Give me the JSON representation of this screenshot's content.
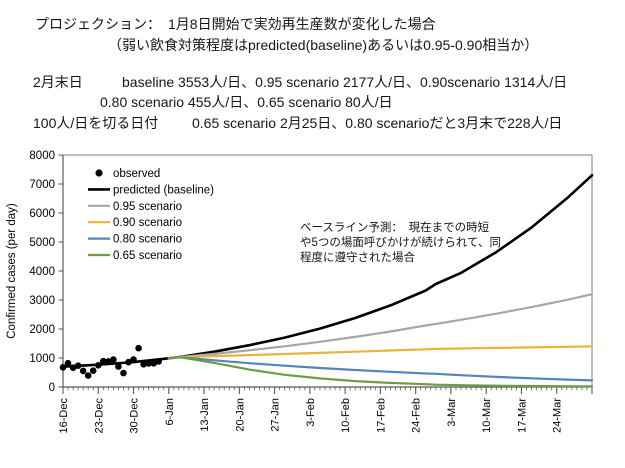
{
  "page": {
    "background": "#FFFFFF"
  },
  "header": {
    "title_line1": "プロジェクション：　1月8日開始で実効再生産数が変化した場合",
    "title_line2": "（弱い飲食対策程度はpredicted(baseline)あるいは0.95-0.90相当か）",
    "stats_line1_label": "2月末日",
    "stats_line1_text": "baseline 3553人/日、0.95 scenario 2177人/日、0.90scenario 1314人/日",
    "stats_line2_text": "0.80 scenario 455人/日、0.65 scenario 80人/日",
    "stats_line3_label": "100人/日を切る日付",
    "stats_line3_text": "0.65 scenario 2月25日、0.80 scenarioだと3月末で228人/日"
  },
  "annotation": {
    "text": "ベースライン予測：　現在までの時短\nや5つの場面呼びかけが続けられて、同\n程度に遵守された場合"
  },
  "chart_data": {
    "type": "line",
    "title": "",
    "xlabel": "",
    "ylabel": "Confirmed cases (per day)",
    "ylim": [
      0,
      8000
    ],
    "ytick_interval": 1000,
    "ytick_labels": [
      "0",
      "1000",
      "2000",
      "3000",
      "4000",
      "5000",
      "6000",
      "7000",
      "8000"
    ],
    "grid": false,
    "legend_position": "top-left-inside",
    "x_total_days": 105,
    "x_major_tick_every_days": 7,
    "x_tick_labels": [
      "16-Dec",
      "23-Dec",
      "30-Dec",
      "6-Jan",
      "13-Jan",
      "20-Jan",
      "27-Jan",
      "3-Feb",
      "10-Feb",
      "17-Feb",
      "24-Feb",
      "3-Mar",
      "10-Mar",
      "17-Mar",
      "24-Mar"
    ],
    "axis_color": "#595959",
    "border_color": "#7F7F7F",
    "observed": {
      "label": "observed",
      "color": "#000000",
      "marker": "circle",
      "days": [
        0,
        1,
        2,
        3,
        4,
        5,
        6,
        7,
        8,
        9,
        10,
        11,
        12,
        13,
        14,
        15,
        16,
        17,
        18,
        19
      ],
      "values": [
        678,
        822,
        664,
        736,
        556,
        392,
        563,
        748,
        888,
        884,
        949,
        708,
        481,
        856,
        944,
        1337,
        783,
        814,
        816,
        884
      ]
    },
    "series": [
      {
        "label": "predicted (baseline)",
        "color": "#000000",
        "width": 2.6,
        "days": [
          0,
          7,
          14,
          21,
          23,
          30,
          37,
          44,
          51,
          58,
          65,
          72,
          74,
          79,
          86,
          93,
          100,
          105
        ],
        "values": [
          700,
          770,
          860,
          990,
          1030,
          1218,
          1440,
          1702,
          2013,
          2380,
          2814,
          3327,
          3553,
          3934,
          4652,
          5500,
          6503,
          7300
        ]
      },
      {
        "label": "0.95 scenario",
        "color": "#A6A6A6",
        "width": 2.2,
        "days": [
          21,
          23,
          30,
          37,
          44,
          51,
          58,
          65,
          72,
          74,
          79,
          86,
          93,
          100,
          105
        ],
        "values": [
          990,
          1030,
          1142,
          1266,
          1404,
          1557,
          1726,
          1914,
          2122,
          2177,
          2316,
          2526,
          2755,
          3005,
          3200
        ]
      },
      {
        "label": "0.90 scenario",
        "color": "#E7B43C",
        "width": 2.2,
        "days": [
          21,
          23,
          30,
          37,
          44,
          51,
          58,
          65,
          72,
          74,
          79,
          86,
          93,
          100,
          105
        ],
        "values": [
          990,
          1030,
          1065,
          1100,
          1138,
          1176,
          1216,
          1257,
          1300,
          1314,
          1328,
          1347,
          1366,
          1385,
          1400
        ]
      },
      {
        "label": "0.80 scenario",
        "color": "#5585BB",
        "width": 2.2,
        "days": [
          21,
          23,
          30,
          37,
          44,
          51,
          58,
          65,
          72,
          74,
          79,
          86,
          93,
          100,
          105
        ],
        "values": [
          990,
          1030,
          920,
          822,
          734,
          656,
          586,
          523,
          467,
          455,
          407,
          349,
          299,
          256,
          228
        ]
      },
      {
        "label": "0.65 scenario",
        "color": "#6E9B46",
        "width": 2.2,
        "days": [
          21,
          23,
          30,
          37,
          44,
          51,
          58,
          65,
          72,
          74,
          79,
          86,
          93,
          100,
          105
        ],
        "values": [
          990,
          1030,
          830,
          600,
          420,
          295,
          205,
          140,
          97,
          80,
          62,
          45,
          33,
          25,
          20
        ]
      }
    ]
  }
}
